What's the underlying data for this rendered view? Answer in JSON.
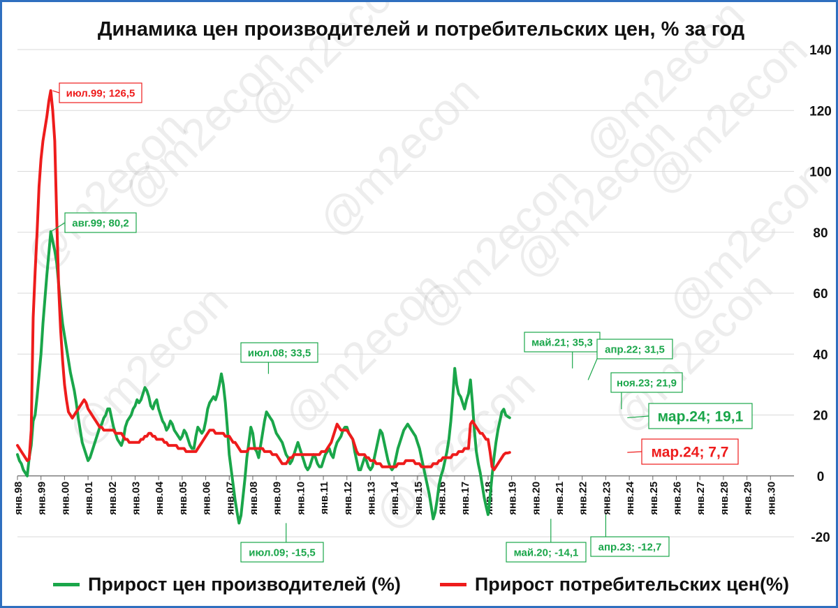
{
  "chart_data": {
    "type": "line",
    "title": "Динамика цен производителей и потребительских цен, % за год",
    "ylim": [
      -20,
      140
    ],
    "yticks": [
      140,
      120,
      100,
      80,
      60,
      40,
      20,
      0,
      -20
    ],
    "y_axis_side": "right",
    "grid": "horizontal",
    "legend_position": "bottom",
    "x_start": "1998-01",
    "xlim": [
      "1998-01",
      "2031-01"
    ],
    "x_tick_labels": [
      "янв.98",
      "янв.99",
      "янв.00",
      "янв.01",
      "янв.02",
      "янв.03",
      "янв.04",
      "янв.05",
      "янв.06",
      "янв.07",
      "янв.08",
      "янв.09",
      "янв.10",
      "янв.11",
      "янв.12",
      "янв.13",
      "янв.14",
      "янв.15",
      "янв.16",
      "янв.17",
      "янв.18",
      "янв.19",
      "янв.20",
      "янв.21",
      "янв.22",
      "янв.23",
      "янв.24",
      "янв.25",
      "янв.26",
      "янв.27",
      "янв.28",
      "янв.29",
      "янв.30"
    ],
    "series": [
      {
        "name": "Прирост цен производителей (%)",
        "color": "#1aa64a",
        "x_step": "month",
        "values": [
          7,
          5,
          4,
          2,
          1,
          0,
          6,
          10,
          18,
          20,
          26,
          33,
          40,
          50,
          58,
          66,
          73,
          80.2,
          77,
          74,
          70,
          63,
          56,
          50,
          46,
          42,
          38,
          34,
          31,
          28,
          24,
          19,
          15,
          11,
          9,
          7,
          5,
          6,
          8,
          10,
          12,
          14,
          16,
          17,
          19,
          20,
          22,
          22,
          19,
          16,
          14,
          12,
          11,
          10,
          12,
          16,
          18,
          19,
          20,
          22,
          23,
          25,
          24,
          25,
          27,
          29,
          28,
          26,
          23,
          22,
          24,
          25,
          22,
          20,
          18,
          17,
          15,
          16,
          18,
          17,
          15,
          14,
          13,
          12,
          13,
          15,
          14,
          12,
          10,
          9,
          9,
          13,
          16,
          15,
          14,
          15,
          18,
          22,
          24,
          25,
          26,
          25,
          27,
          30,
          33.5,
          30,
          24,
          16,
          7,
          2,
          -3,
          -8,
          -12,
          -15.5,
          -13,
          -7,
          -1,
          6,
          11,
          16,
          14,
          9,
          8,
          6,
          10,
          14,
          18,
          21,
          20,
          19,
          18,
          16,
          14,
          13,
          12,
          11,
          9,
          7,
          6,
          4,
          5,
          7,
          9,
          11,
          9,
          7,
          5,
          3,
          2,
          3,
          5,
          7,
          6,
          4,
          3,
          3,
          5,
          7,
          8,
          9,
          7,
          6,
          9,
          11,
          12,
          13,
          15,
          16,
          16,
          14,
          13,
          12,
          8,
          5,
          2,
          2,
          4,
          6,
          5,
          3,
          2,
          3,
          6,
          9,
          12,
          15,
          14,
          11,
          8,
          5,
          3,
          2,
          3,
          6,
          9,
          11,
          13,
          15,
          16,
          17,
          16,
          15,
          14,
          13,
          11,
          9,
          6,
          3,
          0,
          -3,
          -6,
          -10,
          -14.1,
          -12,
          -8,
          -3,
          0,
          2,
          5,
          8,
          12,
          18,
          26,
          35.3,
          30,
          27,
          26,
          24,
          22,
          25,
          27,
          31.5,
          24,
          15,
          8,
          4,
          1,
          -3,
          -7,
          -10,
          -12.7,
          -7,
          0,
          6,
          11,
          15,
          18,
          21,
          21.9,
          20,
          19.5,
          19.1
        ]
      },
      {
        "name": "Прирост потребительских цен(%)",
        "color": "#ee1c1c",
        "x_step": "month",
        "values": [
          10,
          9,
          8,
          7,
          6,
          5,
          5.5,
          15,
          52,
          67,
          80,
          95,
          104,
          110,
          114,
          118,
          123,
          126.5,
          120,
          110,
          85,
          62,
          48,
          38,
          30,
          25,
          21,
          20,
          19,
          20,
          21,
          22,
          23,
          24,
          25,
          24,
          22,
          21,
          20,
          19,
          18,
          17,
          16,
          16,
          15,
          15,
          15,
          15,
          15,
          15,
          14,
          14,
          14,
          14,
          13,
          12,
          12,
          11,
          11,
          11,
          11,
          11,
          11,
          12,
          12,
          13,
          13,
          14,
          14,
          13,
          13,
          12,
          12,
          12,
          12,
          11,
          11,
          10,
          10,
          10,
          10,
          10,
          9,
          9,
          9,
          9,
          8,
          8,
          8,
          8,
          8,
          8,
          9,
          10,
          11,
          12,
          13,
          14,
          15,
          15,
          15,
          14,
          14,
          14,
          14,
          14,
          13,
          13,
          13,
          12,
          11,
          11,
          10,
          9,
          8,
          8,
          8,
          8,
          9,
          9,
          9,
          9,
          9,
          9,
          9,
          9,
          8,
          8,
          8,
          8,
          7,
          7,
          7,
          6,
          5,
          4,
          4,
          4,
          5,
          6,
          6,
          7,
          7,
          7,
          7,
          7,
          7,
          7,
          7,
          7,
          7,
          7,
          7,
          7,
          7,
          8,
          8,
          8,
          9,
          10,
          11,
          13,
          15,
          17,
          16,
          15,
          15,
          15,
          15,
          14,
          13,
          12,
          10,
          8,
          7,
          7,
          7,
          7,
          6,
          6,
          5,
          5,
          5,
          4,
          4,
          4,
          3,
          3,
          3,
          3,
          3,
          3,
          3,
          3,
          4,
          4,
          4,
          4,
          5,
          5,
          5,
          5,
          5,
          4,
          4,
          4,
          3,
          3,
          3,
          3,
          3,
          3,
          4,
          4,
          4,
          5,
          5,
          6,
          6,
          6,
          6,
          6,
          7,
          7,
          7,
          8,
          8,
          8,
          9,
          9,
          9,
          17,
          18,
          17,
          16,
          15,
          14,
          14,
          13,
          12,
          12,
          8,
          3,
          2,
          3,
          4,
          5,
          6,
          7,
          7.5,
          7.5,
          7.7
        ]
      }
    ],
    "annotations": [
      {
        "text": "июл.99; 126,5",
        "series": 1,
        "x": "1999-07",
        "y": 126.5
      },
      {
        "text": "авг.99; 80,2",
        "series": 0,
        "x": "1999-06",
        "y": 80.2
      },
      {
        "text": "июл.08; 33,5",
        "series": 0,
        "x": "2008-09",
        "y": 33.5
      },
      {
        "text": "июл.09; -15,5",
        "series": 0,
        "x": "2009-06",
        "y": -15.5
      },
      {
        "text": "май.21; 35,3",
        "series": 0,
        "x": "2021-08",
        "y": 35.3
      },
      {
        "text": "апр.22; 31,5",
        "series": 0,
        "x": "2022-04",
        "y": 31.5
      },
      {
        "text": "май.20; -14,1",
        "series": 0,
        "x": "2020-09",
        "y": -14.1
      },
      {
        "text": "апр.23; -12,7",
        "series": 0,
        "x": "2023-01",
        "y": -12.7
      },
      {
        "text": "ноя.23; 21,9",
        "series": 0,
        "x": "2023-09",
        "y": 21.9
      },
      {
        "text": "мар.24; 19,1",
        "series": 0,
        "x": "2023-12",
        "y": 19.1
      },
      {
        "text": "мар.24; 7,7",
        "series": 1,
        "x": "2023-12",
        "y": 7.7
      }
    ]
  },
  "watermark": "@m2econ"
}
